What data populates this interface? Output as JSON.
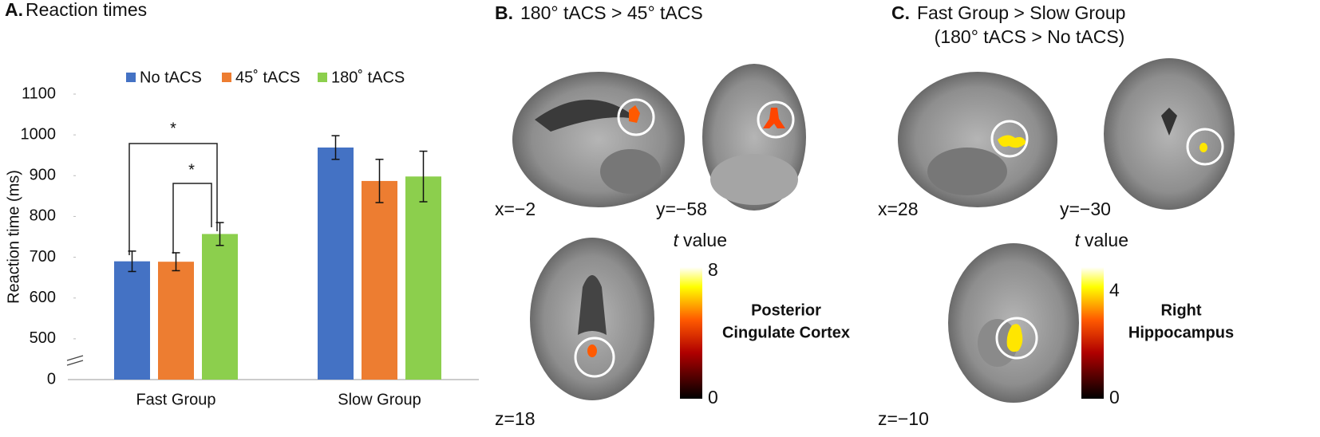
{
  "chart_data": {
    "type": "bar",
    "panel_label": "A.",
    "title": "Reaction times",
    "ylabel": "Reaction time (ms)",
    "categories": [
      "Fast Group",
      "Slow Group"
    ],
    "series": [
      {
        "name": "No tACS",
        "color": "#4472c4",
        "values": [
          690,
          969
        ],
        "errors": [
          25,
          29
        ]
      },
      {
        "name": "45˚ tACS",
        "color": "#ed7d31",
        "values": [
          689,
          887
        ],
        "errors": [
          22,
          53
        ]
      },
      {
        "name": "180˚ tACS",
        "color": "#8ccf4d",
        "values": [
          757,
          898
        ],
        "errors": [
          28,
          62
        ]
      }
    ],
    "ylim": [
      0,
      1100
    ],
    "yticks": [
      0,
      500,
      600,
      700,
      800,
      900,
      1000,
      1100
    ],
    "axis_break": true,
    "legend": "top",
    "annotations": [
      "*",
      "*"
    ]
  },
  "panel_b": {
    "panel_label": "B.",
    "title": "180° tACS > 45° tACS",
    "coords": [
      "x=−2",
      "y=−58",
      "z=18"
    ],
    "colorbar_label": "value",
    "colorbar_var": "t",
    "clim": [
      0,
      8
    ],
    "cticks": [
      0,
      8
    ],
    "region": [
      "Posterior",
      "Cingulate Cortex"
    ]
  },
  "panel_c": {
    "panel_label": "C.",
    "title": "Fast Group > Slow Group",
    "subtitle": "(180° tACS > No tACS)",
    "coords": [
      "x=28",
      "y=−30",
      "z=−10"
    ],
    "colorbar_label": "value",
    "colorbar_var": "t",
    "clim": [
      0,
      4.9
    ],
    "cticks": [
      0,
      4
    ],
    "region": [
      "Right",
      "Hippocampus"
    ]
  }
}
